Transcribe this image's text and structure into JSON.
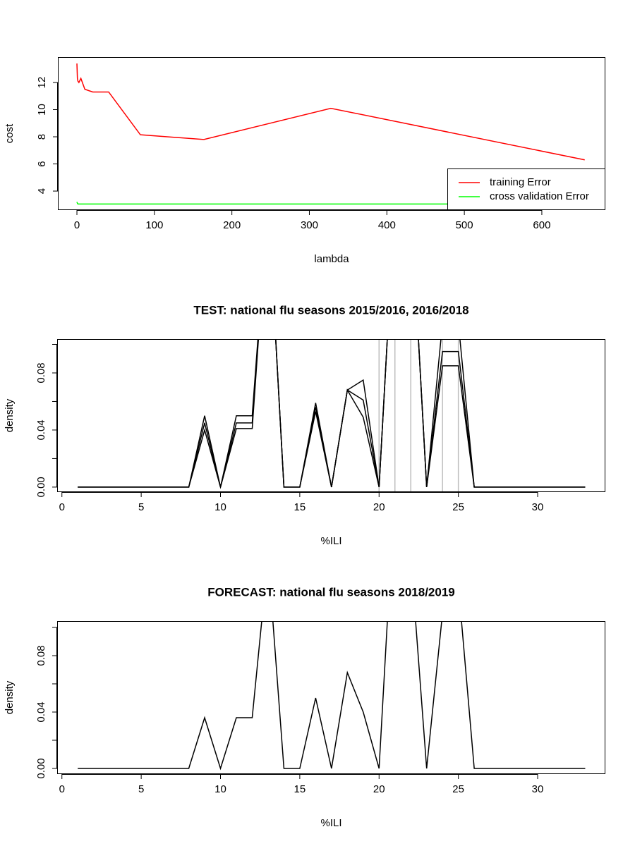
{
  "chart_data": [
    {
      "type": "line",
      "xlabel": "lambda",
      "ylabel": "cost",
      "x": [
        0,
        0.64,
        1.28,
        2.56,
        5.12,
        10.24,
        20.48,
        40.96,
        81.92,
        163.84,
        327.68,
        655.36
      ],
      "series": [
        {
          "name": "training Error",
          "color": "#ff0000",
          "values": [
            13.4,
            12.3,
            12.1,
            12.0,
            12.3,
            11.5,
            11.3,
            11.3,
            8.15,
            7.8,
            10.1,
            6.3
          ]
        },
        {
          "name": "cross validation Error",
          "color": "#00ff00",
          "values": [
            3.2,
            3.1,
            3.05,
            3.05,
            3.05,
            3.05,
            3.05,
            3.05,
            3.05,
            3.05,
            3.05,
            3.05
          ]
        }
      ],
      "xlim": [
        -24.6,
        682
      ],
      "ylim": [
        2.6,
        13.87
      ],
      "xticks": [
        0,
        100,
        200,
        300,
        400,
        500,
        600
      ],
      "yticks": [
        4,
        6,
        8,
        10,
        12
      ],
      "legend": "bottomright"
    },
    {
      "type": "line",
      "title": "TEST: national flu seasons 2015/2016, 2016/2018",
      "xlabel": "%ILI",
      "ylabel": "density",
      "x": [
        1,
        2,
        3,
        4,
        5,
        6,
        7,
        8,
        9,
        10,
        11,
        12,
        13,
        14,
        15,
        16,
        17,
        18,
        19,
        20,
        21,
        22,
        23,
        24,
        25,
        26,
        27,
        28,
        29,
        30,
        31,
        32,
        33
      ],
      "series": [
        {
          "color": "#000000",
          "values": [
            0,
            0,
            0,
            0,
            0,
            0,
            0,
            0,
            0.05,
            0,
            0.05,
            0.05,
            0.2,
            0,
            0,
            0.059,
            0,
            0.068,
            0.075,
            0,
            0.2,
            0.2,
            0,
            0.115,
            0.115,
            0,
            0,
            0,
            0,
            0,
            0,
            0,
            0
          ]
        },
        {
          "color": "#000000",
          "values": [
            0,
            0,
            0,
            0,
            0,
            0,
            0,
            0,
            0.045,
            0,
            0.045,
            0.045,
            0.2,
            0,
            0,
            0.056,
            0,
            0.068,
            0.061,
            0,
            0.2,
            0.2,
            0,
            0.095,
            0.095,
            0,
            0,
            0,
            0,
            0,
            0,
            0,
            0
          ]
        },
        {
          "color": "#000000",
          "values": [
            0,
            0,
            0,
            0,
            0,
            0,
            0,
            0,
            0.04,
            0,
            0.041,
            0.041,
            0.2,
            0,
            0,
            0.053,
            0,
            0.068,
            0.049,
            0,
            0.2,
            0.2,
            0,
            0.085,
            0.085,
            0,
            0,
            0,
            0,
            0,
            0,
            0,
            0
          ]
        }
      ],
      "vlines": {
        "color": "#bebebe",
        "values": [
          20,
          21,
          22,
          24,
          25
        ]
      },
      "xlim": [
        -0.3,
        34.27
      ],
      "ylim": [
        -0.0035,
        0.1037
      ],
      "xticks": [
        0,
        5,
        10,
        15,
        20,
        25,
        30
      ],
      "yticks": [
        {
          "value": 0,
          "label": "0.00"
        },
        {
          "value": 0.04,
          "label": "0.04"
        },
        {
          "value": 0.08,
          "label": "0.08"
        }
      ],
      "yminorticks": [
        0.02,
        0.06,
        0.1
      ]
    },
    {
      "type": "line",
      "title": "FORECAST: national flu seasons 2018/2019",
      "xlabel": "%ILI",
      "ylabel": "density",
      "x": [
        1,
        2,
        3,
        4,
        5,
        6,
        7,
        8,
        9,
        10,
        11,
        12,
        13,
        14,
        15,
        16,
        17,
        18,
        19,
        20,
        21,
        22,
        23,
        24,
        25,
        26,
        27,
        28,
        29,
        30,
        31,
        32,
        33
      ],
      "series": [
        {
          "color": "#000000",
          "values": [
            0,
            0,
            0,
            0,
            0,
            0,
            0,
            0,
            0.036,
            0,
            0.036,
            0.036,
            0.15,
            0,
            0,
            0.05,
            0,
            0.068,
            0.04,
            0,
            0.2,
            0.15,
            0,
            0.11,
            0.13,
            0,
            0,
            0,
            0,
            0,
            0,
            0,
            0
          ]
        }
      ],
      "xlim": [
        -0.3,
        34.27
      ],
      "ylim": [
        -0.004,
        0.1045
      ],
      "xticks": [
        0,
        5,
        10,
        15,
        20,
        25,
        30
      ],
      "yticks": [
        {
          "value": 0,
          "label": "0.00"
        },
        {
          "value": 0.04,
          "label": "0.04"
        },
        {
          "value": 0.08,
          "label": "0.08"
        }
      ],
      "yminorticks": [
        0.02,
        0.06,
        0.1
      ]
    }
  ]
}
